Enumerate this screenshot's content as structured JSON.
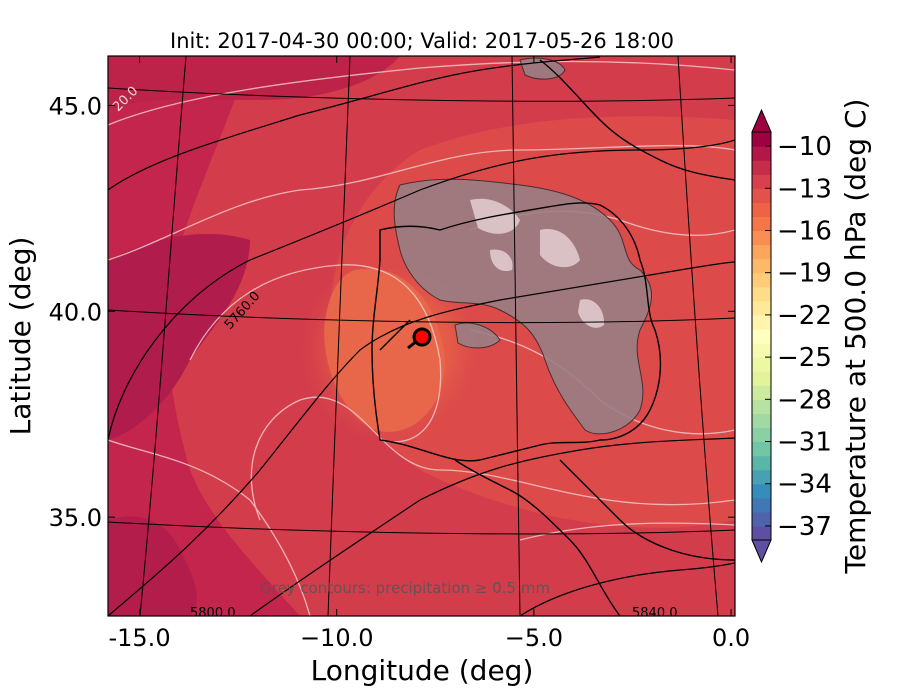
{
  "chart_data": {
    "type": "heatmap",
    "title": "Init: 2017-04-30 00:00; Valid: 2017-05-26 18:00",
    "xlabel": "Longitude (deg)",
    "ylabel": "Latitude (deg)",
    "xlim": [
      -15.8,
      0.1
    ],
    "ylim": [
      32.6,
      46.2
    ],
    "x_ticks": [
      -15.0,
      -10.0,
      -5.0,
      0.0
    ],
    "x_tick_labels": [
      "-15.0",
      "−10.0",
      "−5.0",
      "0.0"
    ],
    "y_ticks": [
      35.0,
      40.0,
      45.0
    ],
    "y_tick_labels": [
      "35.0",
      "40.0",
      "45.0"
    ],
    "colorbar": {
      "label": "Temperature at 500.0 hPa (deg C)",
      "ticks": [
        -10,
        -13,
        -16,
        -19,
        -22,
        -25,
        -28,
        -31,
        -34,
        -37
      ],
      "tick_labels": [
        "−10",
        "−13",
        "−16",
        "−19",
        "−22",
        "−25",
        "−28",
        "−31",
        "−34",
        "−37"
      ],
      "min": -38,
      "max": -9,
      "extend": "both",
      "colormap": "Spectral_r"
    },
    "temperature_contour_labels": [
      "20.0"
    ],
    "height_contour_labels": [
      "5760.0",
      "5800.0",
      "5840.0"
    ],
    "annotation": "Grey contours: precipitation ≥ 0.5 mm",
    "marker": {
      "lon": -7.6,
      "lat": 39.3,
      "color": "#ff0000"
    },
    "grid": true
  }
}
